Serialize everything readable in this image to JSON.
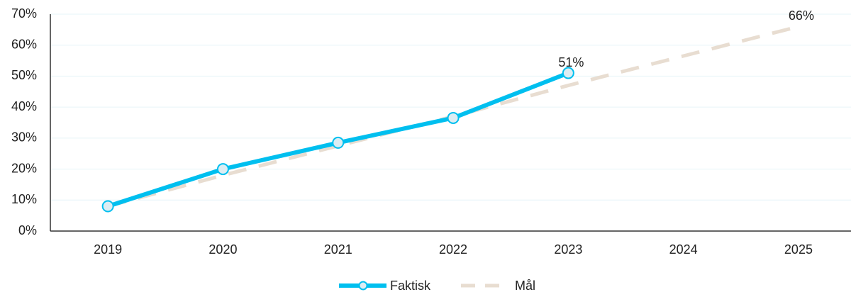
{
  "chart_data": {
    "type": "line",
    "categories": [
      "2019",
      "2020",
      "2021",
      "2022",
      "2023",
      "2024",
      "2025"
    ],
    "series": [
      {
        "name": "Faktisk",
        "color": "#00bfef",
        "values": [
          8,
          20,
          28.5,
          36.5,
          51,
          null,
          null
        ],
        "value_labels": [
          null,
          null,
          null,
          null,
          "51%",
          null,
          null
        ]
      },
      {
        "name": "Mål",
        "color": "#e8ddd1",
        "dashed": true,
        "values": [
          8,
          18,
          27.5,
          37,
          47,
          56.5,
          66
        ],
        "value_labels": [
          null,
          null,
          null,
          null,
          null,
          null,
          "66%"
        ]
      }
    ],
    "ylim": [
      0,
      70
    ],
    "yticks": [
      {
        "value": 0,
        "label": "0%"
      },
      {
        "value": 10,
        "label": "10%"
      },
      {
        "value": 20,
        "label": "20%"
      },
      {
        "value": 30,
        "label": "30%"
      },
      {
        "value": 40,
        "label": "40%"
      },
      {
        "value": 50,
        "label": "50%"
      },
      {
        "value": 60,
        "label": "60%"
      },
      {
        "value": 70,
        "label": "70%"
      }
    ],
    "grid": true,
    "legend": "bottom"
  }
}
